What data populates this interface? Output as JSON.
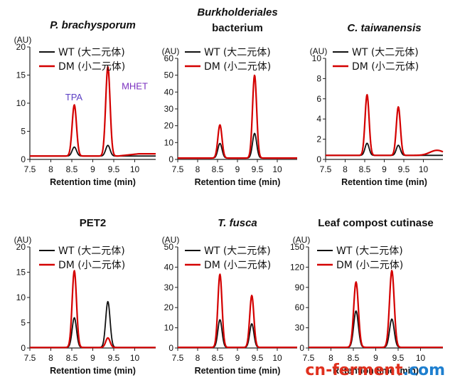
{
  "chart_data": [
    {
      "type": "line",
      "title": "P. brachysporum",
      "title_italic": true,
      "xlabel": "Retention time (min)",
      "ylabel": "(AU)",
      "xlim": [
        7.5,
        10.5
      ],
      "x_ticks": [
        "7.5",
        "8",
        "8.5",
        "9",
        "9.5",
        "10"
      ],
      "ylim": [
        0,
        20
      ],
      "y_ticks": [
        "0",
        "5",
        "10",
        "15",
        "20"
      ],
      "baseline": 0.6,
      "annotations": [
        {
          "text": "TPA",
          "x": 8.55,
          "y": 10.5,
          "color": "#5b3fc4"
        },
        {
          "text": "MHET",
          "x": 10.0,
          "y": 12.5,
          "color": "#7a2fbf"
        }
      ],
      "series": [
        {
          "name": "WT (大二元体)",
          "color": "#111111",
          "peaks": [
            {
              "x": 8.56,
              "y": 2.2
            },
            {
              "x": 9.36,
              "y": 2.5
            }
          ]
        },
        {
          "name": "DM (小二元体)",
          "color": "#d40000",
          "peaks": [
            {
              "x": 8.56,
              "y": 9.7
            },
            {
              "x": 9.36,
              "y": 16.5
            }
          ],
          "tail": 0.4
        }
      ]
    },
    {
      "type": "line",
      "title_lines": [
        "Burkholderiales",
        "bacterium"
      ],
      "title_italic_lines": [
        true,
        false
      ],
      "xlabel": "Retention time (min)",
      "ylabel": "(AU)",
      "xlim": [
        7.5,
        10.5
      ],
      "x_ticks": [
        "7.5",
        "8",
        "8.5",
        "9",
        "9.5",
        "10"
      ],
      "ylim": [
        0,
        60
      ],
      "y_ticks": [
        "0",
        "10",
        "20",
        "30",
        "40",
        "50",
        "60"
      ],
      "baseline": 0.8,
      "series": [
        {
          "name": "WT (大二元体)",
          "color": "#111111",
          "peaks": [
            {
              "x": 8.56,
              "y": 9.5
            },
            {
              "x": 9.43,
              "y": 15.5
            }
          ]
        },
        {
          "name": "DM (小二元体)",
          "color": "#d40000",
          "peaks": [
            {
              "x": 8.56,
              "y": 20.5
            },
            {
              "x": 9.43,
              "y": 50
            }
          ]
        }
      ]
    },
    {
      "type": "line",
      "title": "C. taiwanensis",
      "title_italic": true,
      "xlabel": "Retention time (min)",
      "ylabel": "(AU)",
      "xlim": [
        7.5,
        10.5
      ],
      "x_ticks": [
        "7.5",
        "8",
        "8.5",
        "9",
        "9.5",
        "10"
      ],
      "ylim": [
        0,
        10
      ],
      "y_ticks": [
        "0",
        "2",
        "4",
        "6",
        "8",
        "10"
      ],
      "baseline": 0.4,
      "series": [
        {
          "name": "WT (大二元体)",
          "color": "#111111",
          "peaks": [
            {
              "x": 8.56,
              "y": 1.6
            },
            {
              "x": 9.36,
              "y": 1.4
            }
          ]
        },
        {
          "name": "DM (小二元体)",
          "color": "#d40000",
          "peaks": [
            {
              "x": 8.56,
              "y": 6.4
            },
            {
              "x": 9.36,
              "y": 5.2
            }
          ],
          "hump": {
            "x": 10.35,
            "y": 0.5
          }
        }
      ]
    },
    {
      "type": "line",
      "title": "PET2",
      "title_italic": false,
      "xlabel": "Retention time (min)",
      "ylabel": "(AU)",
      "xlim": [
        7.5,
        10.5
      ],
      "x_ticks": [
        "7.5",
        "8",
        "8.5",
        "9",
        "9.5",
        "10"
      ],
      "ylim": [
        0,
        20
      ],
      "y_ticks": [
        "0",
        "5",
        "10",
        "15",
        "20"
      ],
      "baseline": 0.1,
      "series": [
        {
          "name": "WT (大二元体)",
          "color": "#111111",
          "peaks": [
            {
              "x": 8.56,
              "y": 6.0
            },
            {
              "x": 9.36,
              "y": 9.2
            }
          ]
        },
        {
          "name": "DM (小二元体)",
          "color": "#d40000",
          "peaks": [
            {
              "x": 8.56,
              "y": 15.3
            },
            {
              "x": 9.36,
              "y": 2.0
            }
          ]
        }
      ]
    },
    {
      "type": "line",
      "title": "T. fusca",
      "title_italic": true,
      "xlabel": "Retention time (min)",
      "ylabel": "(AU)",
      "xlim": [
        7.5,
        10.5
      ],
      "x_ticks": [
        "7.5",
        "8",
        "8.5",
        "9",
        "9.5",
        "10"
      ],
      "ylim": [
        0,
        50
      ],
      "y_ticks": [
        "0",
        "10",
        "20",
        "30",
        "40",
        "50"
      ],
      "baseline": 0.3,
      "series": [
        {
          "name": "WT (大二元体)",
          "color": "#111111",
          "peaks": [
            {
              "x": 8.56,
              "y": 14
            },
            {
              "x": 9.36,
              "y": 12
            }
          ]
        },
        {
          "name": "DM (小二元体)",
          "color": "#d40000",
          "peaks": [
            {
              "x": 8.56,
              "y": 36.5
            },
            {
              "x": 9.36,
              "y": 26
            }
          ]
        }
      ]
    },
    {
      "type": "line",
      "title": "Leaf compost cutinase",
      "title_italic": false,
      "xlabel": "Retention time (min)",
      "ylabel": "(AU)",
      "xlim": [
        7.5,
        10.5
      ],
      "x_ticks": [
        "7.5",
        "8",
        "8.5",
        "9",
        "9.5",
        "10"
      ],
      "ylim": [
        0,
        150
      ],
      "y_ticks": [
        "0",
        "30",
        "60",
        "90",
        "120",
        "150"
      ],
      "baseline": 1,
      "series": [
        {
          "name": "WT (大二元体)",
          "color": "#111111",
          "peaks": [
            {
              "x": 8.56,
              "y": 55
            },
            {
              "x": 9.36,
              "y": 43
            }
          ]
        },
        {
          "name": "DM (小二元体)",
          "color": "#d40000",
          "peaks": [
            {
              "x": 8.56,
              "y": 98
            },
            {
              "x": 9.36,
              "y": 115
            }
          ]
        }
      ]
    }
  ],
  "watermark": {
    "text": "cn-ferment.com",
    "colors": [
      "#e0301e",
      "#1e7fcf"
    ]
  }
}
